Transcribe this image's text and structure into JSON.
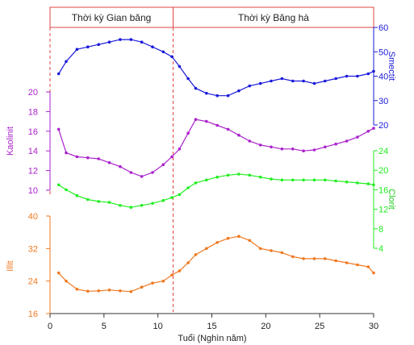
{
  "chart_data": {
    "type": "line",
    "title": "",
    "x_axis": {
      "label": "Tuổi (Nghìn năm)",
      "range": [
        0,
        30
      ],
      "ticks": [
        "0",
        "5",
        "10",
        "15",
        "20",
        "25",
        "30"
      ],
      "tick_values": [
        0,
        5,
        10,
        15,
        20,
        25,
        30
      ]
    },
    "periods": [
      {
        "label": "Thời kỳ Gian băng",
        "x_range": [
          0,
          11.5
        ]
      },
      {
        "label": "Thời kỳ Băng hà",
        "x_range": [
          11.5,
          30
        ]
      }
    ],
    "boundary_x": 11.5,
    "series": [
      {
        "name": "Smectit",
        "color": "#1a1adb",
        "axis_side": "right",
        "range": [
          20,
          60
        ],
        "ticks": [
          "20",
          "30",
          "40",
          "50",
          "60"
        ],
        "tick_values": [
          20,
          30,
          40,
          50,
          60
        ],
        "x": [
          0.8,
          1.5,
          2.5,
          3.5,
          4.5,
          5.5,
          6.5,
          7.5,
          8.5,
          9.5,
          10.5,
          11.3,
          12,
          12.8,
          13.5,
          14.5,
          15.5,
          16.5,
          17.5,
          18.5,
          19.5,
          20.5,
          21.5,
          22.5,
          23.5,
          24.5,
          25.5,
          26.5,
          27.5,
          28.5,
          29.5,
          30
        ],
        "y": [
          41,
          46,
          51,
          52,
          53,
          54,
          55,
          55,
          54,
          52,
          50,
          48,
          44,
          39,
          35,
          33,
          32,
          32,
          34,
          36,
          37,
          38,
          39,
          38,
          38,
          37,
          38,
          39,
          40,
          40,
          41,
          42
        ]
      },
      {
        "name": "Kaolinit",
        "color": "#aa22cc",
        "axis_side": "left",
        "range": [
          10,
          20
        ],
        "ticks": [
          "10",
          "12",
          "14",
          "16",
          "18",
          "20"
        ],
        "tick_values": [
          10,
          12,
          14,
          16,
          18,
          20
        ],
        "x": [
          0.8,
          1.5,
          2.5,
          3.5,
          4.5,
          5.5,
          6.5,
          7.5,
          8.5,
          9.5,
          10.5,
          11.3,
          12,
          12.8,
          13.5,
          14.5,
          15.5,
          16.5,
          17.5,
          18.5,
          19.5,
          20.5,
          21.5,
          22.5,
          23.5,
          24.5,
          25.5,
          26.5,
          27.5,
          28.5,
          29.5,
          30
        ],
        "y": [
          16.2,
          13.8,
          13.4,
          13.3,
          13.2,
          12.8,
          12.4,
          11.8,
          11.4,
          11.8,
          12.6,
          13.4,
          14.2,
          15.8,
          17.2,
          17.0,
          16.6,
          16.2,
          15.6,
          15.0,
          14.6,
          14.4,
          14.2,
          14.2,
          14.0,
          14.1,
          14.4,
          14.7,
          15.0,
          15.4,
          16.0,
          16.3
        ]
      },
      {
        "name": "Clorit",
        "color": "#22ee22",
        "axis_side": "right",
        "range": [
          4,
          24
        ],
        "ticks": [
          "4",
          "8",
          "12",
          "16",
          "20",
          "24"
        ],
        "tick_values": [
          4,
          8,
          12,
          16,
          20,
          24
        ],
        "x": [
          0.8,
          1.5,
          2.5,
          3.5,
          4.5,
          5.5,
          6.5,
          7.5,
          8.5,
          9.5,
          10.5,
          11.3,
          12,
          12.8,
          13.5,
          14.5,
          15.5,
          16.5,
          17.5,
          18.5,
          19.5,
          20.5,
          21.5,
          22.5,
          23.5,
          24.5,
          25.5,
          26.5,
          27.5,
          28.5,
          29.5,
          30
        ],
        "y": [
          17.0,
          16.0,
          14.8,
          14.0,
          13.6,
          13.4,
          12.8,
          12.4,
          12.8,
          13.2,
          13.8,
          14.4,
          15.0,
          16.4,
          17.4,
          18.0,
          18.6,
          19.0,
          19.2,
          19.0,
          18.6,
          18.2,
          18.0,
          18.0,
          18.0,
          18.0,
          18.0,
          17.8,
          17.6,
          17.4,
          17.2,
          17.0
        ]
      },
      {
        "name": "Illit",
        "color": "#f07820",
        "axis_side": "left",
        "range": [
          16,
          40
        ],
        "ticks": [
          "16",
          "24",
          "32",
          "40"
        ],
        "tick_values": [
          16,
          24,
          32,
          40
        ],
        "x": [
          0.8,
          1.5,
          2.5,
          3.5,
          4.5,
          5.5,
          6.5,
          7.5,
          8.5,
          9.5,
          10.5,
          11.3,
          12,
          12.8,
          13.5,
          14.5,
          15.5,
          16.5,
          17.5,
          18.5,
          19.5,
          20.5,
          21.5,
          22.5,
          23.5,
          24.5,
          25.5,
          26.5,
          27.5,
          28.5,
          29.5,
          30
        ],
        "y": [
          26.0,
          24.0,
          22.0,
          21.5,
          21.6,
          21.8,
          21.6,
          21.4,
          22.5,
          23.5,
          24.0,
          25.5,
          26.5,
          28.5,
          30.5,
          32.0,
          33.5,
          34.5,
          35.0,
          34.0,
          32.0,
          31.5,
          31.0,
          30.0,
          29.5,
          29.5,
          29.5,
          29.0,
          28.5,
          28.0,
          27.5,
          26.0
        ]
      }
    ]
  }
}
